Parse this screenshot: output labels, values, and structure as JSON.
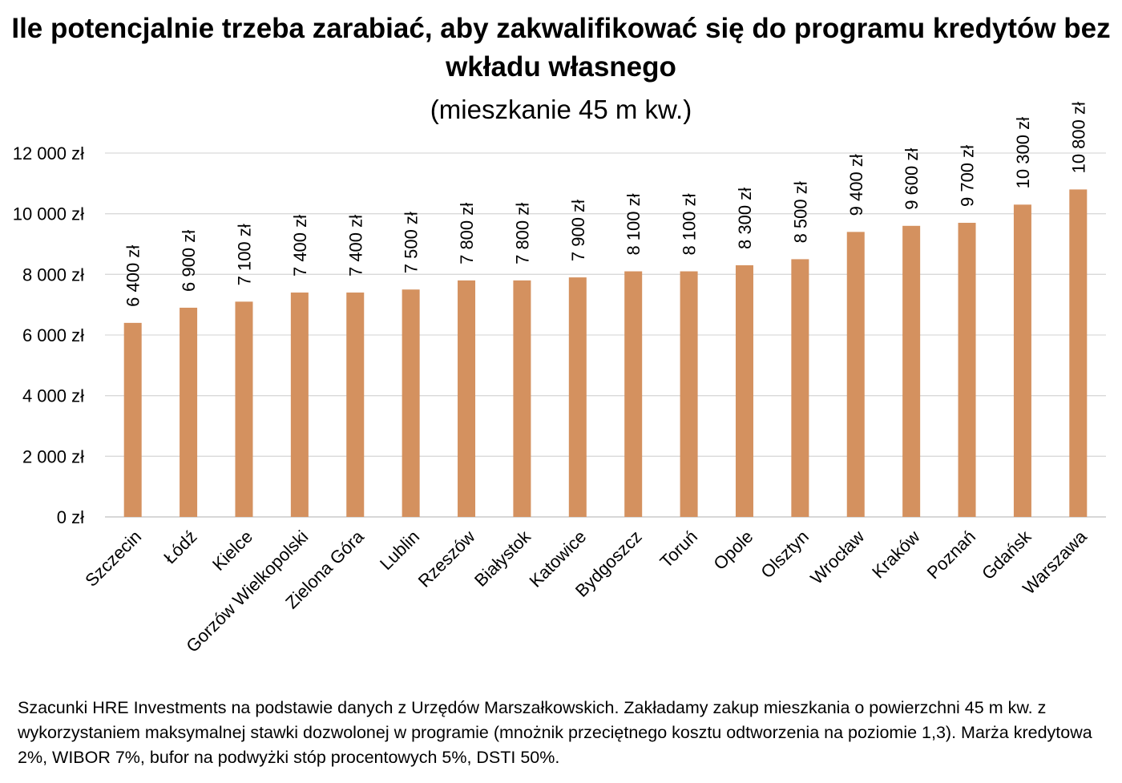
{
  "chart_data": {
    "type": "bar",
    "title": "Ile potencjalnie trzeba zarabiać, aby zakwalifikować się do programu kredytów bez wkładu własnego",
    "subtitle": "(mieszkanie 45 m kw.)",
    "categories": [
      "Szczecin",
      "Łódź",
      "Kielce",
      "Gorzów Wielkopolski",
      "Zielona Góra",
      "Lublin",
      "Rzeszów",
      "Białystok",
      "Katowice",
      "Bydgoszcz",
      "Toruń",
      "Opole",
      "Olsztyn",
      "Wrocław",
      "Kraków",
      "Poznań",
      "Gdańsk",
      "Warszawa"
    ],
    "values": [
      6400,
      6900,
      7100,
      7400,
      7400,
      7500,
      7800,
      7800,
      7900,
      8100,
      8100,
      8300,
      8500,
      9400,
      9600,
      9700,
      10300,
      10800
    ],
    "value_labels": [
      "6 400 zł",
      "6 900 zł",
      "7 100 zł",
      "7 400 zł",
      "7 400 zł",
      "7 500 zł",
      "7 800 zł",
      "7 800 zł",
      "7 900 zł",
      "8 100 zł",
      "8 100 zł",
      "8 300 zł",
      "8 500 zł",
      "9 400 zł",
      "9 600 zł",
      "9 700 zł",
      "10 300 zł",
      "10 800 zł"
    ],
    "yticks": [
      0,
      2000,
      4000,
      6000,
      8000,
      10000,
      12000
    ],
    "ytick_labels": [
      "0 zł",
      "2 000 zł",
      "4 000 zł",
      "6 000 zł",
      "8 000 zł",
      "10 000 zł",
      "12 000 zł"
    ],
    "ylim": [
      0,
      12000
    ],
    "grid": true,
    "bar_color": "#D4915F",
    "xlabel": "",
    "ylabel": ""
  },
  "footnote": "Szacunki HRE Investments na podstawie danych z Urzędów Marszałkowskich. Zakładamy zakup mieszkania o powierzchni 45 m kw. z wykorzystaniem maksymalnej stawki dozwolonej w programie (mnożnik przeciętnego kosztu odtworzenia na poziomie 1,3). Marża kredytowa 2%, WIBOR 7%, bufor na podwyżki stóp procentowych 5%, DSTI 50%."
}
